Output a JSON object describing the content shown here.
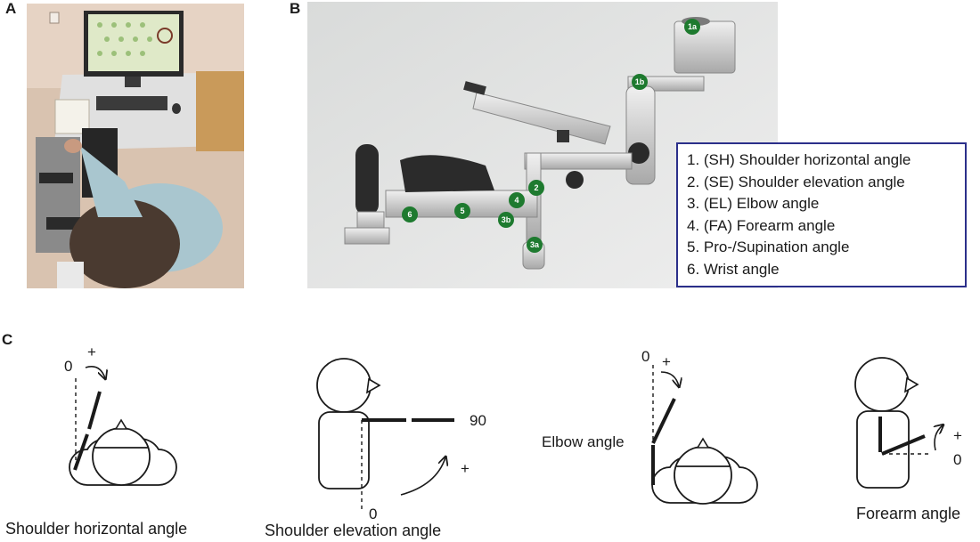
{
  "panels": {
    "a": {
      "letter": "A"
    },
    "b": {
      "letter": "B",
      "badges": [
        "1a",
        "1b",
        "2",
        "3a",
        "3b",
        "4",
        "5",
        "6"
      ],
      "legend": [
        "1. (SH) Shoulder horizontal angle",
        "2. (SE) Shoulder elevation angle",
        "3. (EL) Elbow angle",
        "4. (FA) Forearm angle",
        "5. Pro-/Supination angle",
        "6. Wrist angle"
      ]
    },
    "c": {
      "letter": "C",
      "diagrams": [
        {
          "caption": "Shoulder horizontal angle",
          "zero": "0",
          "plus": "+"
        },
        {
          "caption": "Shoulder elevation angle",
          "zero": "0",
          "plus": "+",
          "ninety": "90"
        },
        {
          "caption": "",
          "zero": "0",
          "plus": "+",
          "inline_label": "Elbow angle"
        },
        {
          "caption": "Forearm angle",
          "zero": "0",
          "plus": "+"
        }
      ]
    }
  },
  "colors": {
    "badge": "#1e7a2f",
    "legend_border": "#2b2f8a",
    "line": "#1a1a1a"
  }
}
